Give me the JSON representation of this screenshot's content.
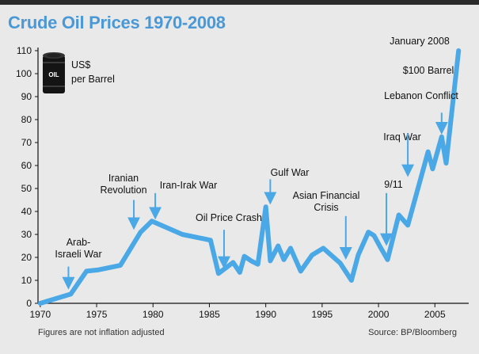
{
  "title": "Crude Oil Prices 1970-2008",
  "footnote": "Figures are not inflation adjusted",
  "source": "Source: BP/Bloomberg",
  "legend": {
    "line1": "US$",
    "line2": "per Barrel",
    "barrel_label": "OIL"
  },
  "colors": {
    "line": "#4aa8e6",
    "title": "#4a98d6",
    "arrow": "#4aa8e6",
    "frame": "#e9e9e9"
  },
  "chart_data": {
    "type": "line",
    "title": "Crude Oil Prices 1970-2008",
    "xlabel": "",
    "ylabel": "US$ per Barrel",
    "xlim": [
      1969.8,
      2008
    ],
    "ylim": [
      0,
      110
    ],
    "x_ticks": [
      {
        "value": 1970,
        "label": "1970"
      },
      {
        "value": 1975,
        "label": "1975"
      },
      {
        "value": 1980,
        "label": "1980"
      },
      {
        "value": 1985,
        "label": "1985"
      },
      {
        "value": 1990,
        "label": "1990"
      },
      {
        "value": 1995,
        "label": "1995"
      },
      {
        "value": 2000,
        "label": "2000"
      },
      {
        "value": 2005,
        "label": "2005"
      }
    ],
    "y_ticks": [
      {
        "value": 0,
        "label": "0"
      },
      {
        "value": 10,
        "label": "10"
      },
      {
        "value": 20,
        "label": "20"
      },
      {
        "value": 30,
        "label": "30"
      },
      {
        "value": 40,
        "label": "40"
      },
      {
        "value": 50,
        "label": "50"
      },
      {
        "value": 60,
        "label": "60"
      },
      {
        "value": 70,
        "label": "70"
      },
      {
        "value": 80,
        "label": "80"
      },
      {
        "value": 90,
        "label": "90"
      },
      {
        "value": 100,
        "label": "100"
      },
      {
        "value": 110,
        "label": "110"
      }
    ],
    "series": [
      {
        "name": "Crude oil price (US$ per barrel)",
        "x": [
          1970.0,
          1972.7,
          1974.1,
          1975.1,
          1977.1,
          1978.9,
          1979.9,
          1982.6,
          1985.1,
          1985.8,
          1987.1,
          1987.7,
          1988.1,
          1988.7,
          1989.3,
          1990.0,
          1990.4,
          1991.1,
          1991.6,
          1992.2,
          1993.1,
          1994.1,
          1995.1,
          1996.6,
          1997.6,
          1998.2,
          1999.1,
          1999.6,
          2000.1,
          2000.8,
          2001.8,
          2002.6,
          2004.4,
          2004.8,
          2005.6,
          2006.0,
          2007.1
        ],
        "y": [
          0,
          4,
          14,
          14.5,
          16.5,
          31,
          35.8,
          30,
          27.5,
          13,
          17.8,
          13.5,
          20.5,
          18.5,
          17,
          42,
          18.5,
          25,
          19,
          24,
          14,
          21,
          24,
          17.5,
          10,
          21,
          31,
          29.5,
          25,
          19,
          38.5,
          34,
          66,
          58.5,
          72.5,
          61,
          110
        ]
      }
    ],
    "annotations": [
      {
        "lines": [
          "Arab-",
          "Israeli War"
        ],
        "arrow_x": 1972.5,
        "arrow_y_top": 16,
        "arrow_y_bottom": 7
      },
      {
        "lines": [
          "Iranian",
          "Revolution"
        ],
        "arrow_x": 1978.3,
        "arrow_y_top": 45,
        "arrow_y_bottom": 33
      },
      {
        "lines": [
          "Iran-Irak War"
        ],
        "arrow_x": 1980.2,
        "arrow_y_top": 48,
        "arrow_y_bottom": 37.5
      },
      {
        "lines": [
          "Oil Price Crash"
        ],
        "arrow_x": 1986.3,
        "arrow_y_top": 32,
        "arrow_y_bottom": 16
      },
      {
        "lines": [
          "Gulf War"
        ],
        "arrow_x": 1990.4,
        "arrow_y_top": 54,
        "arrow_y_bottom": 44
      },
      {
        "lines": [
          "Asian Financial",
          "Crisis"
        ],
        "arrow_x": 1997.1,
        "arrow_y_top": 38,
        "arrow_y_bottom": 20
      },
      {
        "lines": [
          "9/11"
        ],
        "arrow_x": 2000.7,
        "arrow_y_top": 48,
        "arrow_y_bottom": 26
      },
      {
        "lines": [
          "Iraq War"
        ],
        "arrow_x": 2002.6,
        "arrow_y_top": 74,
        "arrow_y_bottom": 56
      },
      {
        "lines": [
          "Lebanon Conflict"
        ],
        "arrow_x": 2005.6,
        "arrow_y_top": 83,
        "arrow_y_bottom": 74.5
      },
      {
        "lines": [
          "$100 Barrel"
        ],
        "arrow_x": null
      },
      {
        "lines": [
          "January 2008"
        ],
        "arrow_x": null
      }
    ]
  }
}
